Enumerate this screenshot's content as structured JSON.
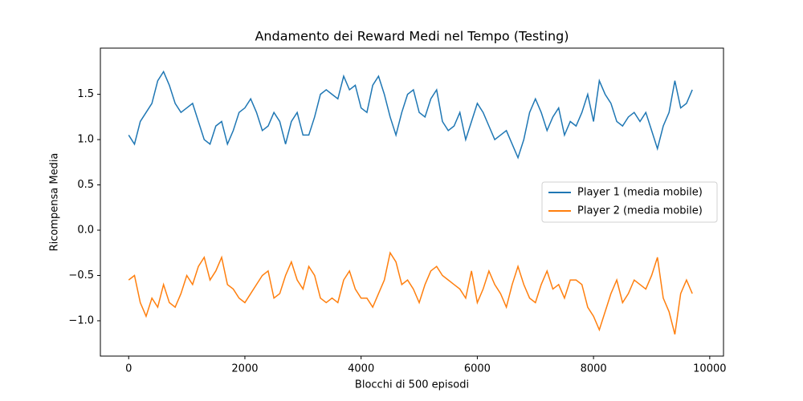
{
  "chart_data": {
    "type": "line",
    "title": "Andamento dei Reward Medi nel Tempo (Testing)",
    "xlabel": "Blocchi di 500 episodi",
    "ylabel": "Ricompensa Media",
    "x": [
      0,
      100,
      200,
      300,
      400,
      500,
      600,
      700,
      800,
      900,
      1000,
      1100,
      1200,
      1300,
      1400,
      1500,
      1600,
      1700,
      1800,
      1900,
      2000,
      2100,
      2200,
      2300,
      2400,
      2500,
      2600,
      2700,
      2800,
      2900,
      3000,
      3100,
      3200,
      3300,
      3400,
      3500,
      3600,
      3700,
      3800,
      3900,
      4000,
      4100,
      4200,
      4300,
      4400,
      4500,
      4600,
      4700,
      4800,
      4900,
      5000,
      5100,
      5200,
      5300,
      5400,
      5500,
      5600,
      5700,
      5800,
      5900,
      6000,
      6100,
      6200,
      6300,
      6400,
      6500,
      6600,
      6700,
      6800,
      6900,
      7000,
      7100,
      7200,
      7300,
      7400,
      7500,
      7600,
      7700,
      7800,
      7900,
      8000,
      8100,
      8200,
      8300,
      8400,
      8500,
      8600,
      8700,
      8800,
      8900,
      9000,
      9100,
      9200,
      9300,
      9400,
      9500,
      9600,
      9700
    ],
    "series": [
      {
        "name": "Player 1 (media mobile)",
        "color": "#1f77b4",
        "values": [
          1.05,
          0.95,
          1.2,
          1.3,
          1.4,
          1.65,
          1.75,
          1.6,
          1.4,
          1.3,
          1.35,
          1.4,
          1.2,
          1.0,
          0.95,
          1.15,
          1.2,
          0.95,
          1.1,
          1.3,
          1.35,
          1.45,
          1.3,
          1.1,
          1.15,
          1.3,
          1.2,
          0.95,
          1.2,
          1.3,
          1.05,
          1.05,
          1.25,
          1.5,
          1.55,
          1.5,
          1.45,
          1.7,
          1.55,
          1.6,
          1.35,
          1.3,
          1.6,
          1.7,
          1.5,
          1.25,
          1.05,
          1.3,
          1.5,
          1.55,
          1.3,
          1.25,
          1.45,
          1.55,
          1.2,
          1.1,
          1.15,
          1.3,
          1.0,
          1.2,
          1.4,
          1.3,
          1.15,
          1.0,
          1.05,
          1.1,
          0.95,
          0.8,
          1.0,
          1.3,
          1.45,
          1.3,
          1.1,
          1.25,
          1.35,
          1.05,
          1.2,
          1.15,
          1.3,
          1.5,
          1.2,
          1.65,
          1.5,
          1.4,
          1.2,
          1.15,
          1.25,
          1.3,
          1.2,
          1.3,
          1.1,
          0.9,
          1.15,
          1.3,
          1.65,
          1.35,
          1.4,
          1.55
        ]
      },
      {
        "name": "Player 2 (media mobile)",
        "color": "#ff7f0e",
        "values": [
          -0.55,
          -0.5,
          -0.8,
          -0.95,
          -0.75,
          -0.85,
          -0.6,
          -0.8,
          -0.85,
          -0.7,
          -0.5,
          -0.6,
          -0.4,
          -0.3,
          -0.55,
          -0.45,
          -0.3,
          -0.6,
          -0.65,
          -0.75,
          -0.8,
          -0.7,
          -0.6,
          -0.5,
          -0.45,
          -0.75,
          -0.7,
          -0.5,
          -0.35,
          -0.55,
          -0.65,
          -0.4,
          -0.5,
          -0.75,
          -0.8,
          -0.75,
          -0.8,
          -0.55,
          -0.45,
          -0.65,
          -0.75,
          -0.75,
          -0.85,
          -0.7,
          -0.55,
          -0.25,
          -0.35,
          -0.6,
          -0.55,
          -0.65,
          -0.8,
          -0.6,
          -0.45,
          -0.4,
          -0.5,
          -0.55,
          -0.6,
          -0.65,
          -0.75,
          -0.45,
          -0.8,
          -0.65,
          -0.45,
          -0.6,
          -0.7,
          -0.85,
          -0.6,
          -0.4,
          -0.6,
          -0.75,
          -0.8,
          -0.6,
          -0.45,
          -0.65,
          -0.6,
          -0.75,
          -0.55,
          -0.55,
          -0.6,
          -0.85,
          -0.95,
          -1.1,
          -0.9,
          -0.7,
          -0.55,
          -0.8,
          -0.7,
          -0.55,
          -0.6,
          -0.65,
          -0.5,
          -0.3,
          -0.75,
          -0.9,
          -1.15,
          -0.7,
          -0.55,
          -0.7
        ]
      }
    ],
    "xlim": [
      -487,
      10237
    ],
    "ylim": [
      -1.39,
      2.01
    ],
    "xticks": [
      0,
      2000,
      4000,
      6000,
      8000,
      10000
    ],
    "yticks": [
      {
        "value": -1.0,
        "label": "−1.0"
      },
      {
        "value": -0.5,
        "label": "−0.5"
      },
      {
        "value": 0.0,
        "label": "0.0"
      },
      {
        "value": 0.5,
        "label": "0.5"
      },
      {
        "value": 1.0,
        "label": "1.0"
      },
      {
        "value": 1.5,
        "label": "1.5"
      }
    ],
    "legend": "center right"
  }
}
